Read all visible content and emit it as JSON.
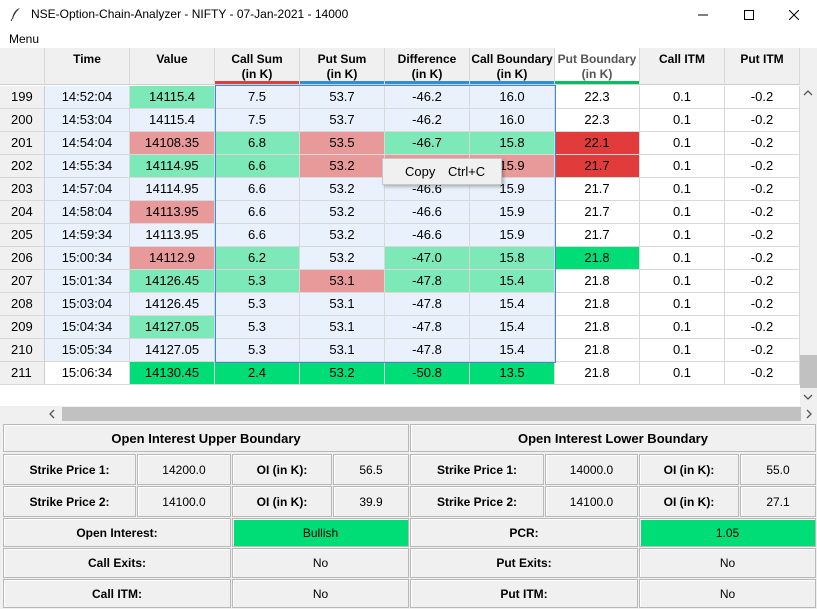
{
  "window": {
    "title": "NSE-Option-Chain-Analyzer - NIFTY - 07-Jan-2021 - 14000",
    "menu_label": "Menu"
  },
  "colors": {
    "green_light": "#7de8b8",
    "green_bright": "#00dd77",
    "red_light": "#e89a9a",
    "red_bright": "#e23b3b",
    "selection": "#e8f1fc"
  },
  "columns": [
    {
      "line1": "Time",
      "line2": ""
    },
    {
      "line1": "Value",
      "line2": ""
    },
    {
      "line1": "Call Sum",
      "line2": "(in K)"
    },
    {
      "line1": "Put Sum",
      "line2": "(in K)"
    },
    {
      "line1": "Difference",
      "line2": "(in K)"
    },
    {
      "line1": "Call Boundary",
      "line2": "(in K)"
    },
    {
      "line1": "Put Boundary",
      "line2": "(in K)"
    },
    {
      "line1": "Call ITM",
      "line2": ""
    },
    {
      "line1": "Put ITM",
      "line2": ""
    }
  ],
  "rows": [
    {
      "idx": "199",
      "cells": [
        "14:52:04",
        "14115.4",
        "7.5",
        "53.7",
        "-46.2",
        "16.0",
        "22.3",
        "0.1",
        "-0.2"
      ],
      "bg": [
        "",
        "gl",
        "",
        "",
        "",
        "",
        "",
        "",
        ""
      ]
    },
    {
      "idx": "200",
      "cells": [
        "14:53:04",
        "14115.4",
        "7.5",
        "53.7",
        "-46.2",
        "16.0",
        "22.3",
        "0.1",
        "-0.2"
      ],
      "bg": [
        "",
        "",
        "",
        "",
        "",
        "",
        "",
        "",
        ""
      ]
    },
    {
      "idx": "201",
      "cells": [
        "14:54:04",
        "14108.35",
        "6.8",
        "53.5",
        "-46.7",
        "15.8",
        "22.1",
        "0.1",
        "-0.2"
      ],
      "bg": [
        "",
        "rl",
        "gl",
        "rl",
        "gl",
        "gl",
        "rb",
        "",
        ""
      ]
    },
    {
      "idx": "202",
      "cells": [
        "14:55:34",
        "14114.95",
        "6.6",
        "53.2",
        "-46.6",
        "15.9",
        "21.7",
        "0.1",
        "-0.2"
      ],
      "bg": [
        "",
        "gl",
        "gl",
        "rl",
        "rl",
        "rl",
        "rb",
        "",
        ""
      ]
    },
    {
      "idx": "203",
      "cells": [
        "14:57:04",
        "14114.95",
        "6.6",
        "53.2",
        "-46.6",
        "15.9",
        "21.7",
        "0.1",
        "-0.2"
      ],
      "bg": [
        "",
        "",
        "",
        "",
        "",
        "",
        "",
        "",
        ""
      ]
    },
    {
      "idx": "204",
      "cells": [
        "14:58:04",
        "14113.95",
        "6.6",
        "53.2",
        "-46.6",
        "15.9",
        "21.7",
        "0.1",
        "-0.2"
      ],
      "bg": [
        "",
        "rl",
        "",
        "",
        "",
        "",
        "",
        "",
        ""
      ]
    },
    {
      "idx": "205",
      "cells": [
        "14:59:34",
        "14113.95",
        "6.6",
        "53.2",
        "-46.6",
        "15.9",
        "21.7",
        "0.1",
        "-0.2"
      ],
      "bg": [
        "",
        "",
        "",
        "",
        "",
        "",
        "",
        "",
        ""
      ]
    },
    {
      "idx": "206",
      "cells": [
        "15:00:34",
        "14112.9",
        "6.2",
        "53.2",
        "-47.0",
        "15.8",
        "21.8",
        "0.1",
        "-0.2"
      ],
      "bg": [
        "",
        "rl",
        "gl",
        "",
        "gl",
        "gl",
        "gb",
        "",
        ""
      ]
    },
    {
      "idx": "207",
      "cells": [
        "15:01:34",
        "14126.45",
        "5.3",
        "53.1",
        "-47.8",
        "15.4",
        "21.8",
        "0.1",
        "-0.2"
      ],
      "bg": [
        "",
        "gl",
        "gl",
        "rl",
        "gl",
        "gl",
        "",
        "",
        ""
      ]
    },
    {
      "idx": "208",
      "cells": [
        "15:03:04",
        "14126.45",
        "5.3",
        "53.1",
        "-47.8",
        "15.4",
        "21.8",
        "0.1",
        "-0.2"
      ],
      "bg": [
        "",
        "",
        "",
        "",
        "",
        "",
        "",
        "",
        ""
      ]
    },
    {
      "idx": "209",
      "cells": [
        "15:04:34",
        "14127.05",
        "5.3",
        "53.1",
        "-47.8",
        "15.4",
        "21.8",
        "0.1",
        "-0.2"
      ],
      "bg": [
        "",
        "gl",
        "",
        "",
        "",
        "",
        "",
        "",
        ""
      ]
    },
    {
      "idx": "210",
      "cells": [
        "15:05:34",
        "14127.05",
        "5.3",
        "53.1",
        "-47.8",
        "15.4",
        "21.8",
        "0.1",
        "-0.2"
      ],
      "bg": [
        "",
        "",
        "",
        "",
        "",
        "",
        "",
        "",
        ""
      ]
    },
    {
      "idx": "211",
      "cells": [
        "15:06:34",
        "14130.45",
        "2.4",
        "53.2",
        "-50.8",
        "13.5",
        "21.8",
        "0.1",
        "-0.2"
      ],
      "bg": [
        "",
        "gb",
        "gb",
        "gb",
        "gb",
        "gb",
        "",
        "",
        ""
      ]
    }
  ],
  "context_menu": {
    "copy_label": "Copy",
    "shortcut": "Ctrl+C"
  },
  "upper": {
    "title": "Open Interest Upper Boundary",
    "strike1_label": "Strike Price 1:",
    "strike1_value": "14200.0",
    "oi1_label": "OI (in K):",
    "oi1_value": "56.5",
    "strike2_label": "Strike Price 2:",
    "strike2_value": "14100.0",
    "oi2_label": "OI (in K):",
    "oi2_value": "39.9"
  },
  "lower": {
    "title": "Open Interest Lower Boundary",
    "strike1_label": "Strike Price 1:",
    "strike1_value": "14000.0",
    "oi1_label": "OI (in K):",
    "oi1_value": "55.0",
    "strike2_label": "Strike Price 2:",
    "strike2_value": "14100.0",
    "oi2_label": "OI (in K):",
    "oi2_value": "27.1"
  },
  "summary": {
    "open_interest_label": "Open Interest:",
    "open_interest_value": "Bullish",
    "pcr_label": "PCR:",
    "pcr_value": "1.05",
    "call_exits_label": "Call Exits:",
    "call_exits_value": "No",
    "put_exits_label": "Put Exits:",
    "put_exits_value": "No",
    "call_itm_label": "Call ITM:",
    "call_itm_value": "No",
    "put_itm_label": "Put ITM:",
    "put_itm_value": "No"
  }
}
